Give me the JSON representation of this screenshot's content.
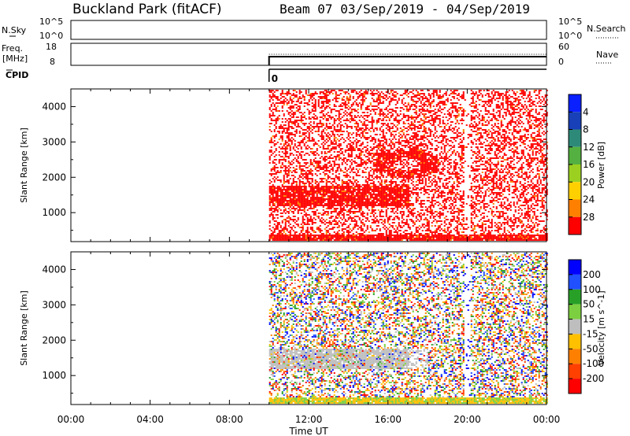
{
  "header": {
    "station": "Buckland Park (fitACF)",
    "beam_and_dates": "Beam 07   03/Sep/2019 - 04/Sep/2019"
  },
  "nsky_panel": {
    "left_label": "N.Sky",
    "left_ticks": [
      "10^5",
      "10^0"
    ],
    "right_ticks": [
      "10^5",
      "10^0"
    ],
    "right_label": "N.Search"
  },
  "freq_panel": {
    "left_label_1": "Freq.",
    "left_label_2": "[MHz]",
    "left_ticks": [
      "18",
      "8"
    ],
    "right_ticks": [
      "60",
      "0"
    ],
    "right_label": "Nave"
  },
  "cpid": {
    "label": "CPID",
    "value": "0"
  },
  "chart_data": [
    {
      "type": "heatmap",
      "panel": "power",
      "ylabel": "Slant Range [km]",
      "y_ticks": [
        "1000",
        "2000",
        "3000",
        "4000"
      ],
      "ylim": [
        180,
        4500
      ],
      "data_start_hour": 10.0,
      "colorbar": {
        "label": "Power [dB]",
        "ticks": [
          "4",
          "8",
          "12",
          "16",
          "20",
          "24",
          "28"
        ],
        "colors": [
          "#0a20ff",
          "#1840b8",
          "#2e8a78",
          "#54b040",
          "#9cd020",
          "#ffd000",
          "#ff8000",
          "#ff0000"
        ]
      },
      "features": {
        "dense_band_km": [
          1200,
          1800
        ],
        "loop_center_hour": 16.9,
        "loop_center_km": 2400,
        "gap_hour": 20.0
      }
    },
    {
      "type": "heatmap",
      "panel": "velocity",
      "ylabel": "Slant Range [km]",
      "y_ticks": [
        "1000",
        "2000",
        "3000",
        "4000"
      ],
      "ylim": [
        180,
        4500
      ],
      "data_start_hour": 10.0,
      "colorbar": {
        "label": "Velocity [m s^-1]",
        "ticks": [
          "200",
          "100",
          "50",
          "15",
          "-15",
          "-50",
          "-100",
          "-200"
        ],
        "colors": [
          "#0000ff",
          "#2050ff",
          "#28a028",
          "#7ccf40",
          "#bebebe",
          "#ffc000",
          "#ff8000",
          "#ff4000",
          "#ff0000"
        ]
      },
      "features": {
        "ground_scatter_km": [
          1200,
          1800
        ],
        "gap_hour": 20.0
      }
    }
  ],
  "time_axis": {
    "xlabel": "Time UT",
    "ticks": [
      "00:00",
      "04:00",
      "08:00",
      "12:00",
      "16:00",
      "20:00",
      "00:00"
    ],
    "xlim": [
      0,
      24
    ]
  }
}
